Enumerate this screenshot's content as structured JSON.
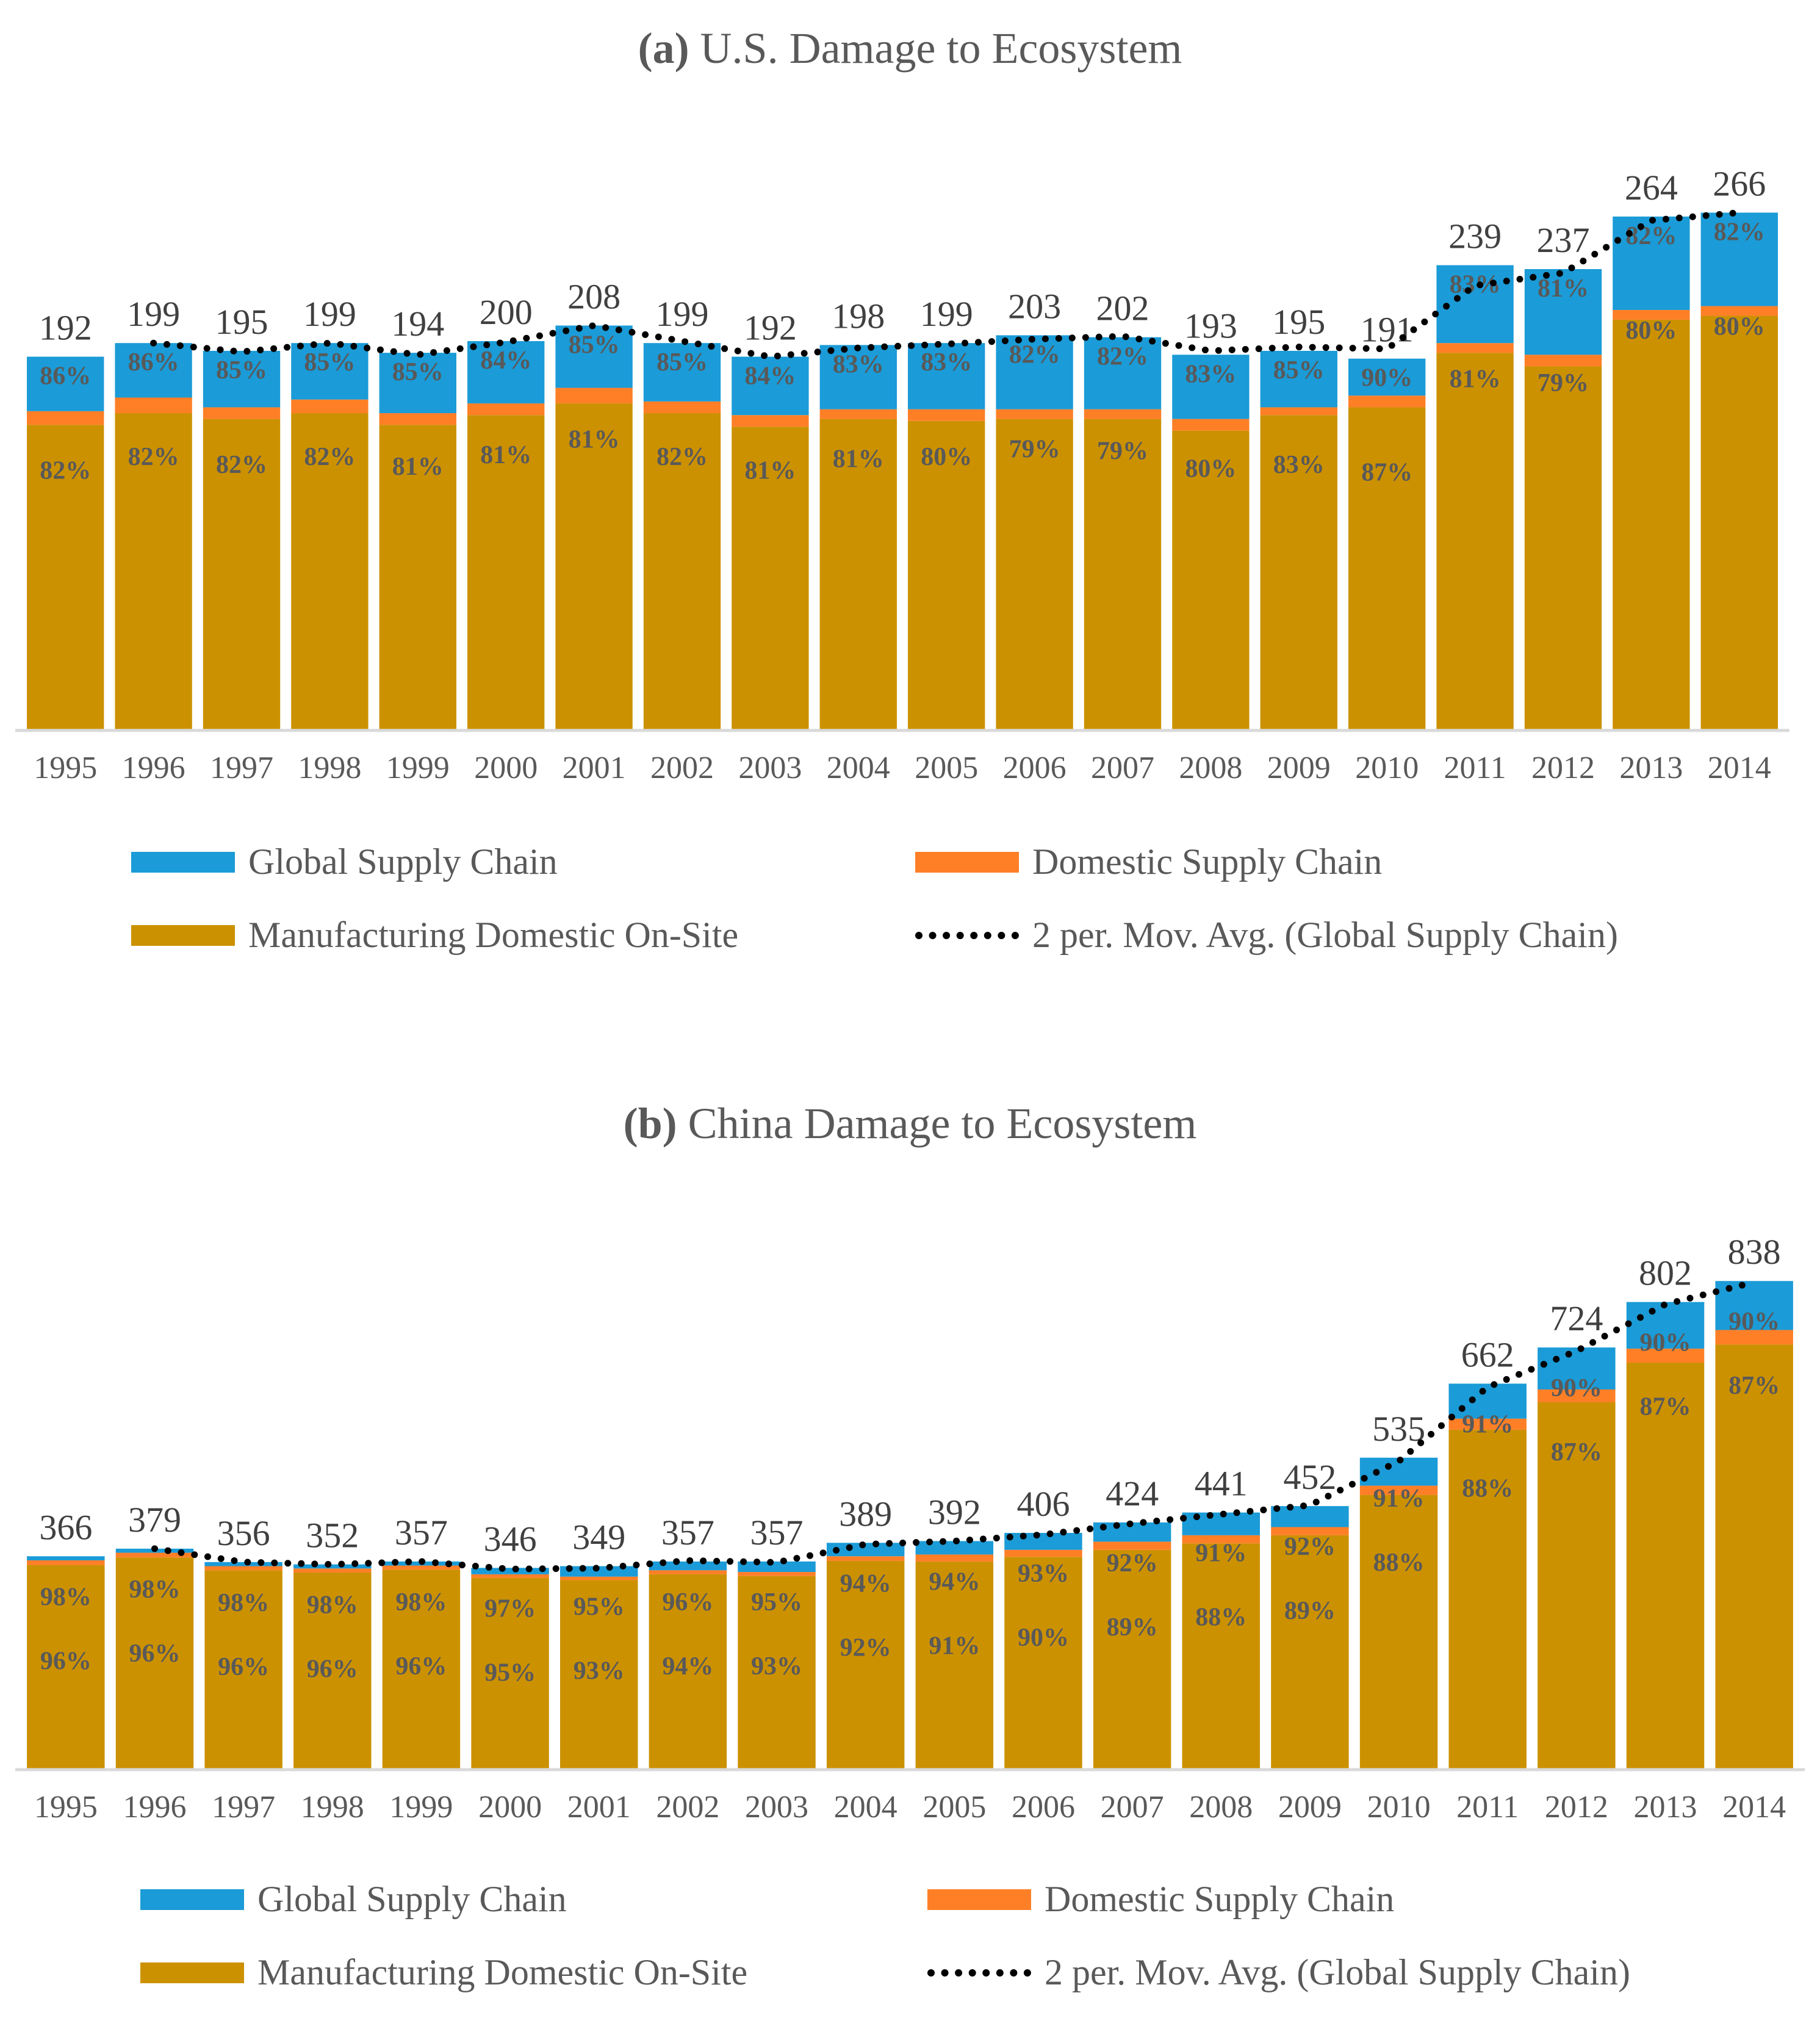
{
  "colors": {
    "global": "#1b9bd7",
    "domestic": "#ff7f27",
    "manufacturing": "#cc9100",
    "movavg": "#000000",
    "axis": "#d9d9d9",
    "text": "#595959"
  },
  "legend": {
    "global": "Global Supply Chain",
    "domestic": "Domestic Supply Chain",
    "manufacturing": "Manufacturing Domestic On-Site",
    "movavg": "2 per. Mov. Avg. (Global Supply Chain)"
  },
  "chart_data": [
    {
      "type": "bar",
      "stacked": true,
      "title_prefix": "(a)",
      "title": "U.S. Damage to Ecosystem",
      "categories": [
        "1995",
        "1996",
        "1997",
        "1998",
        "1999",
        "2000",
        "2001",
        "2002",
        "2003",
        "2004",
        "2005",
        "2006",
        "2007",
        "2008",
        "2009",
        "2010",
        "2011",
        "2012",
        "2013",
        "2014"
      ],
      "ylim": [
        0,
        300
      ],
      "totals": [
        192,
        199,
        195,
        199,
        194,
        200,
        208,
        199,
        192,
        198,
        199,
        203,
        202,
        193,
        195,
        191,
        239,
        237,
        264,
        266
      ],
      "series": [
        {
          "name": "Manufacturing Domestic On-Site",
          "key": "manufacturing",
          "values": [
            157,
            163,
            160,
            163,
            157,
            162,
            168,
            163,
            156,
            160,
            159,
            160,
            160,
            154,
            162,
            166,
            194,
            187,
            211,
            213
          ]
        },
        {
          "name": "Domestic Supply Chain",
          "key": "domestic",
          "values": [
            7,
            8,
            6,
            7,
            6,
            6,
            8,
            6,
            6,
            5,
            6,
            5,
            5,
            6,
            4,
            6,
            5,
            6,
            5,
            5
          ]
        },
        {
          "name": "Global Supply Chain",
          "key": "global",
          "values": [
            28,
            28,
            29,
            29,
            31,
            32,
            32,
            30,
            30,
            33,
            34,
            38,
            37,
            33,
            29,
            19,
            40,
            44,
            48,
            48
          ]
        }
      ],
      "label_share": [
        "82%",
        "82%",
        "82%",
        "82%",
        "81%",
        "81%",
        "81%",
        "82%",
        "81%",
        "81%",
        "80%",
        "79%",
        "79%",
        "80%",
        "83%",
        "87%",
        "81%",
        "79%",
        "80%",
        "80%"
      ],
      "label_domestic_share": [
        "86%",
        "86%",
        "85%",
        "85%",
        "85%",
        "84%",
        "85%",
        "85%",
        "84%",
        "83%",
        "83%",
        "82%",
        "82%",
        "83%",
        "85%",
        "90%",
        "83%",
        "81%",
        "82%",
        "82%"
      ],
      "moving_average": [
        null,
        28,
        28.5,
        29,
        30,
        31.5,
        32,
        31,
        30,
        31.5,
        33.5,
        36,
        37.5,
        35,
        31,
        24,
        29.5,
        42,
        46,
        48
      ]
    },
    {
      "type": "bar",
      "stacked": true,
      "title_prefix": "(b)",
      "title": "China Damage to Ecosystem",
      "categories": [
        "1995",
        "1996",
        "1997",
        "1998",
        "1999",
        "2000",
        "2001",
        "2002",
        "2003",
        "2004",
        "2005",
        "2006",
        "2007",
        "2008",
        "2009",
        "2010",
        "2011",
        "2012",
        "2013",
        "2014"
      ],
      "ylim": [
        0,
        900
      ],
      "totals": [
        366,
        379,
        356,
        352,
        357,
        346,
        349,
        357,
        357,
        389,
        392,
        406,
        424,
        441,
        452,
        535,
        662,
        724,
        802,
        838
      ],
      "series": [
        {
          "name": "Manufacturing Domestic On-Site",
          "key": "manufacturing",
          "values": [
            351,
            364,
            342,
            338,
            343,
            329,
            325,
            335,
            332,
            358,
            357,
            365,
            377,
            388,
            402,
            471,
            583,
            630,
            698,
            729
          ]
        },
        {
          "name": "Domestic Supply Chain",
          "key": "domestic",
          "values": [
            8,
            8,
            7,
            7,
            7,
            6,
            6,
            7,
            7,
            8,
            12,
            12,
            14,
            14,
            14,
            16,
            19,
            22,
            24,
            25
          ]
        },
        {
          "name": "Global Supply Chain",
          "key": "global",
          "values": [
            7,
            7,
            7,
            7,
            7,
            11,
            18,
            15,
            18,
            23,
            23,
            29,
            33,
            39,
            36,
            48,
            60,
            72,
            80,
            84
          ]
        }
      ],
      "label_share": [
        "96%",
        "96%",
        "96%",
        "96%",
        "96%",
        "95%",
        "93%",
        "94%",
        "93%",
        "92%",
        "91%",
        "90%",
        "89%",
        "88%",
        "89%",
        "88%",
        "88%",
        "87%",
        "87%",
        "87%"
      ],
      "label_domestic_share": [
        "98%",
        "98%",
        "98%",
        "98%",
        "98%",
        "97%",
        "95%",
        "96%",
        "95%",
        "94%",
        "94%",
        "93%",
        "92%",
        "91%",
        "92%",
        "91%",
        "91%",
        "90%",
        "90%",
        "90%"
      ],
      "moving_average": [
        null,
        7,
        7,
        7,
        7,
        9,
        14.5,
        16.5,
        16.5,
        20.5,
        23,
        26,
        31,
        36,
        37.5,
        42,
        54,
        66,
        76,
        82
      ]
    }
  ]
}
